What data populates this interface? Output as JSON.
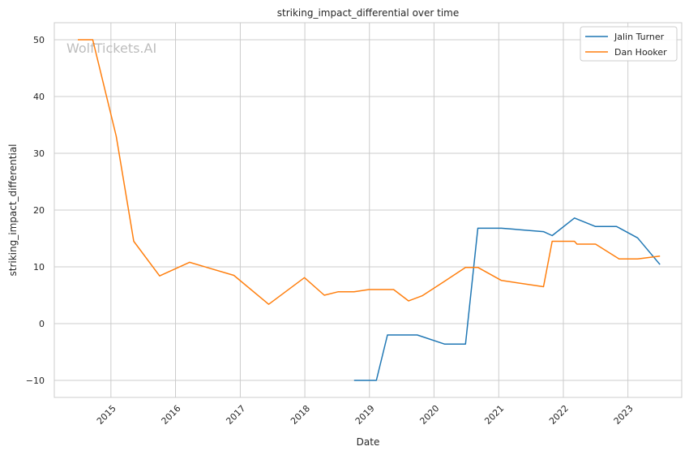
{
  "chart_data": {
    "type": "line",
    "title": "striking_impact_differential over time",
    "xlabel": "Date",
    "ylabel": "striking_impact_differential",
    "x_axis": "date",
    "xlim": [
      "2014-02-15",
      "2023-11-01"
    ],
    "ylim": [
      -13,
      53
    ],
    "x_ticks": [
      "2015",
      "2016",
      "2017",
      "2018",
      "2019",
      "2020",
      "2021",
      "2022",
      "2023"
    ],
    "y_ticks": [
      -10,
      0,
      10,
      20,
      30,
      40,
      50
    ],
    "grid": true,
    "legend_position": "top-right",
    "watermark": "WolfTickets.AI",
    "series": [
      {
        "name": "Jalin Turner",
        "color": "#1f77b4",
        "points": [
          [
            "2018-10-06",
            -10
          ],
          [
            "2019-02-09",
            -10
          ],
          [
            "2019-04-13",
            -2
          ],
          [
            "2019-09-28",
            -2
          ],
          [
            "2020-02-29",
            -3.6
          ],
          [
            "2020-06-27",
            -3.6
          ],
          [
            "2020-09-05",
            16.8
          ],
          [
            "2021-01-16",
            16.8
          ],
          [
            "2021-09-11",
            16.2
          ],
          [
            "2021-10-30",
            15.5
          ],
          [
            "2022-03-05",
            18.6
          ],
          [
            "2022-07-02",
            17.1
          ],
          [
            "2022-10-29",
            17.1
          ],
          [
            "2023-02-25",
            15.1
          ],
          [
            "2023-07-01",
            10.4
          ]
        ]
      },
      {
        "name": "Dan Hooker",
        "color": "#ff7f0e",
        "points": [
          [
            "2014-06-28",
            50
          ],
          [
            "2014-09-20",
            50
          ],
          [
            "2015-01-31",
            33
          ],
          [
            "2015-05-10",
            14.5
          ],
          [
            "2015-10-03",
            8.4
          ],
          [
            "2016-03-20",
            10.8
          ],
          [
            "2016-11-26",
            8.5
          ],
          [
            "2017-06-11",
            3.4
          ],
          [
            "2017-12-30",
            8.1
          ],
          [
            "2018-04-21",
            5.0
          ],
          [
            "2018-07-07",
            5.6
          ],
          [
            "2018-10-06",
            5.6
          ],
          [
            "2018-12-29",
            6.0
          ],
          [
            "2019-05-18",
            6.0
          ],
          [
            "2019-08-10",
            4.0
          ],
          [
            "2019-10-26",
            4.9
          ],
          [
            "2020-02-22",
            7.3
          ],
          [
            "2020-06-27",
            9.9
          ],
          [
            "2020-09-05",
            9.9
          ],
          [
            "2021-01-16",
            7.6
          ],
          [
            "2021-09-11",
            6.5
          ],
          [
            "2021-10-30",
            14.5
          ],
          [
            "2022-03-05",
            14.5
          ],
          [
            "2022-03-19",
            14.0
          ],
          [
            "2022-07-02",
            14.0
          ],
          [
            "2022-11-12",
            11.4
          ],
          [
            "2023-02-25",
            11.4
          ],
          [
            "2023-07-01",
            11.9
          ]
        ]
      }
    ]
  }
}
